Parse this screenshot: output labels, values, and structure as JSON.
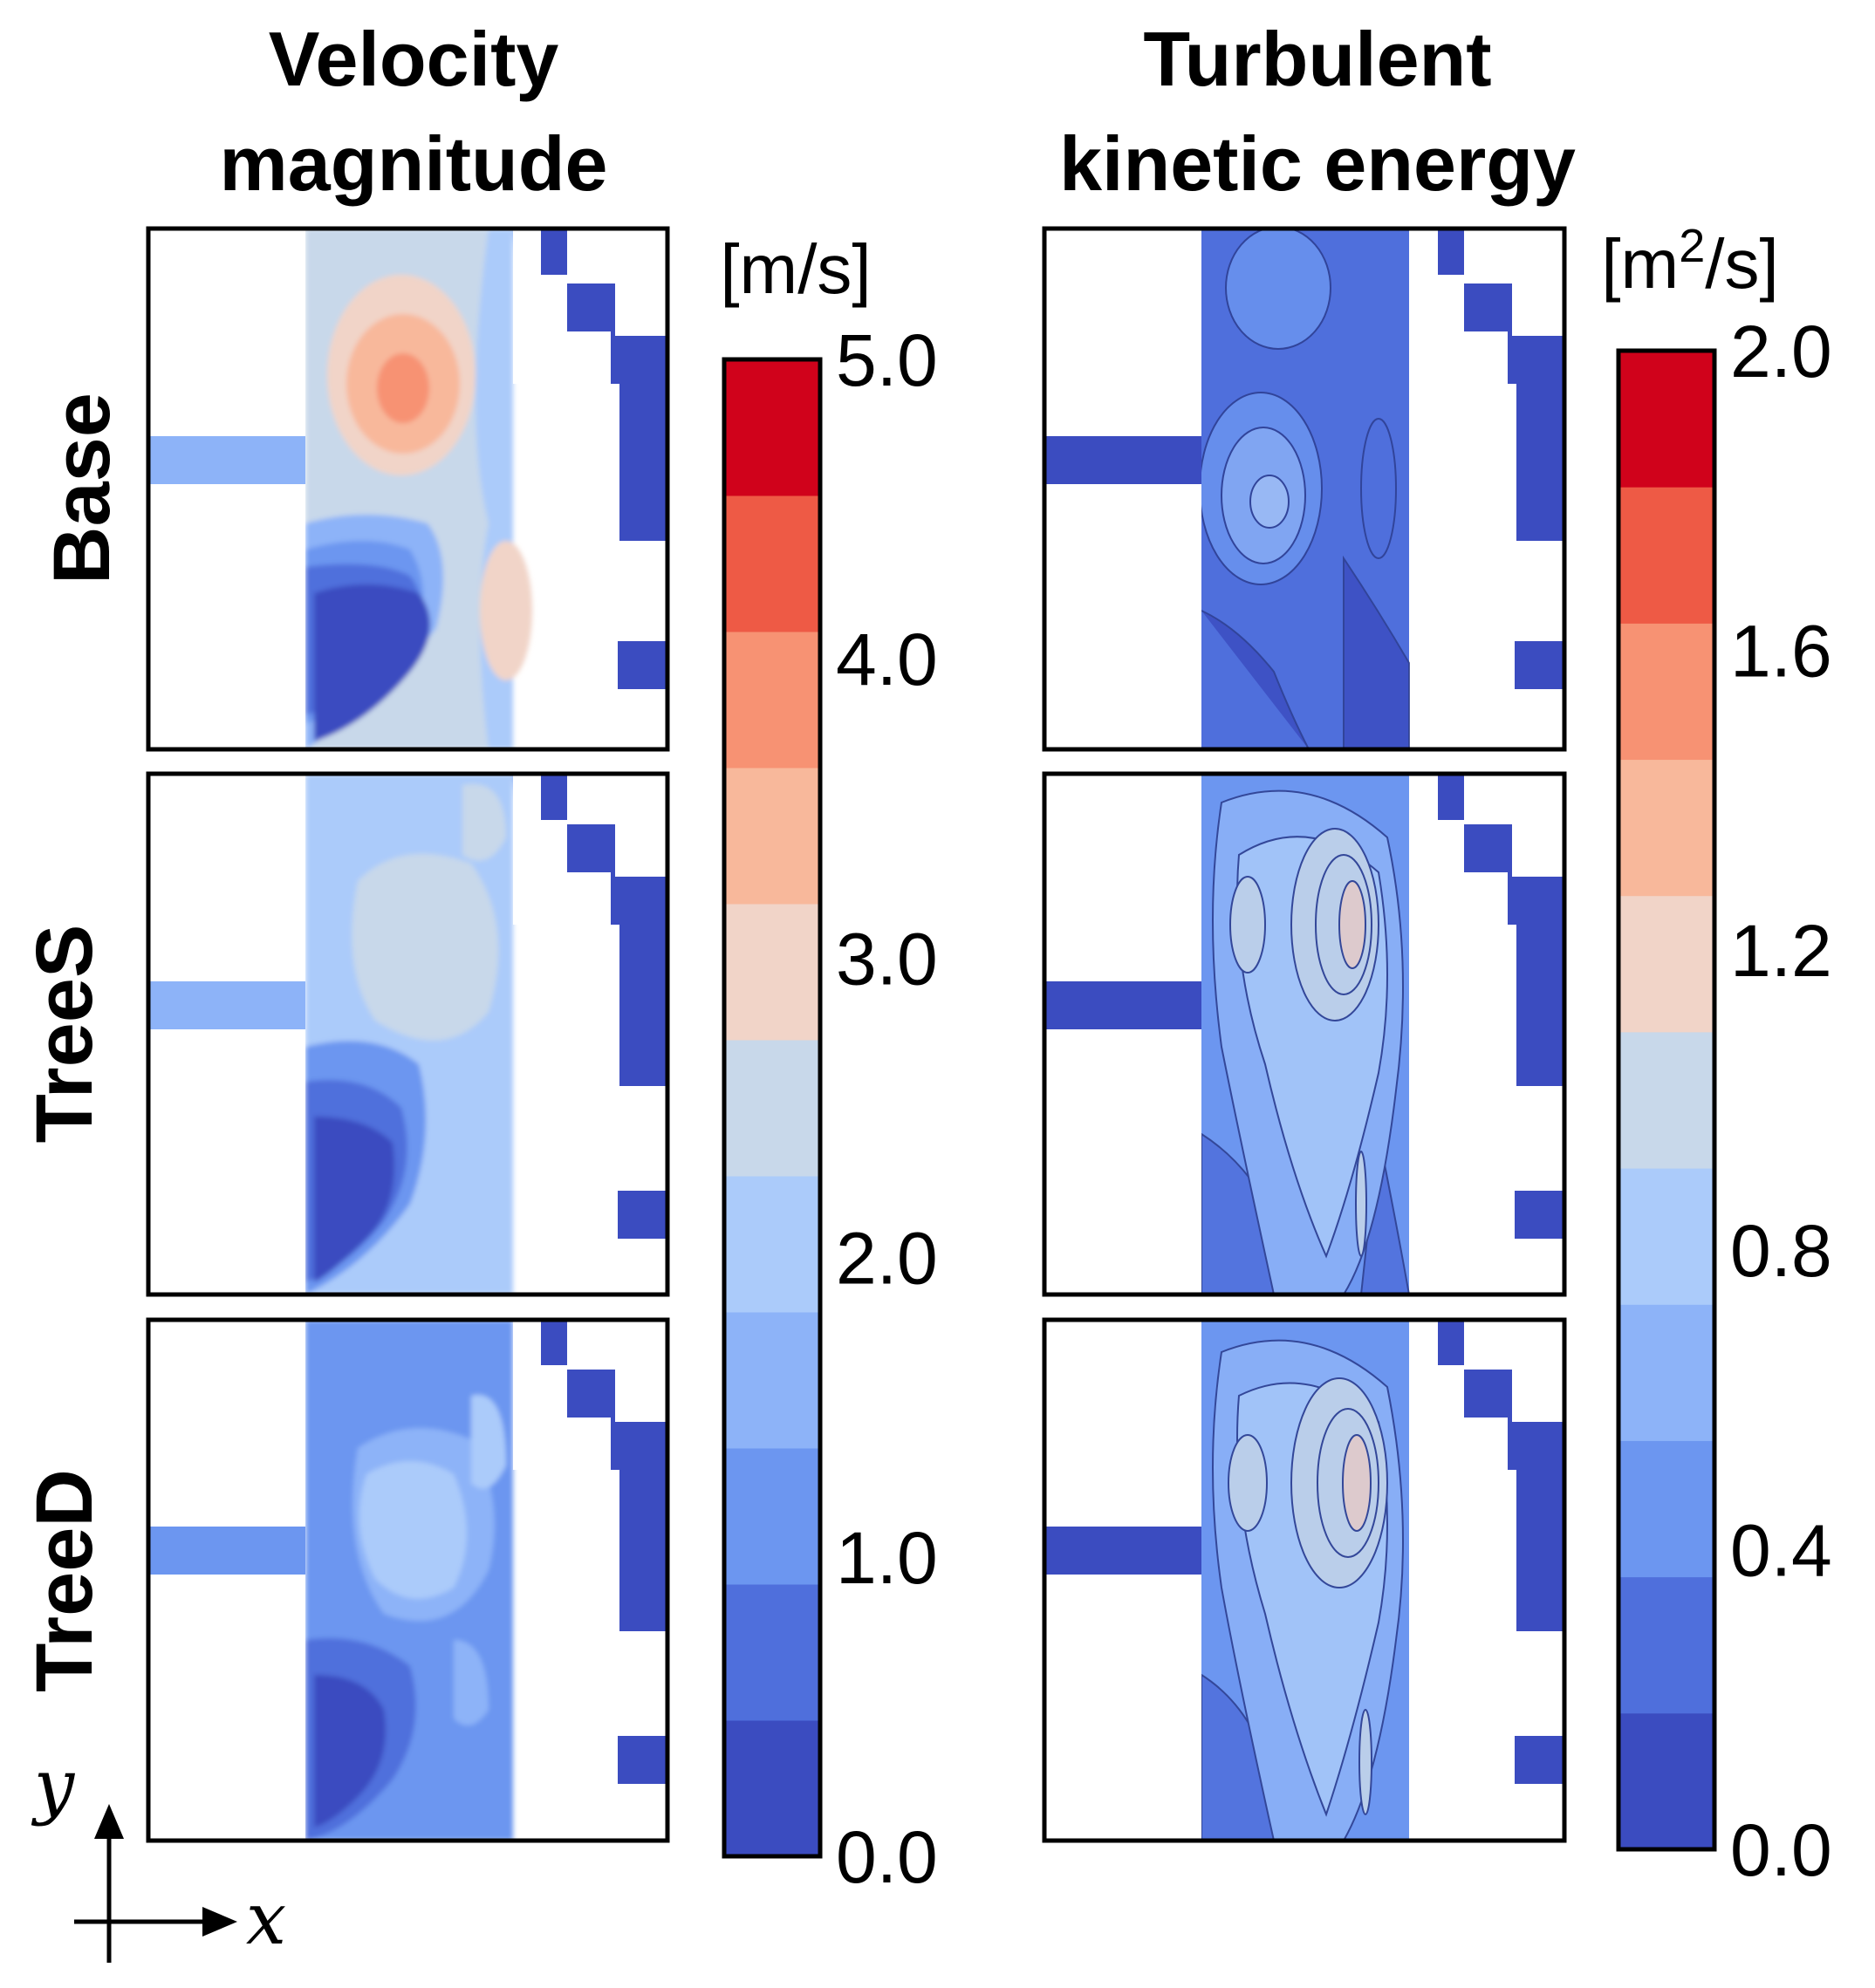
{
  "chart_data": [
    {
      "type": "heatmap",
      "title": "Velocity magnitude",
      "title_lines": [
        "Velocity",
        "magnitude"
      ],
      "unit": "[m/s]",
      "row_labels": [
        "Base",
        "TreeS",
        "TreeD"
      ],
      "colorbar": {
        "range": [
          0,
          5.0
        ],
        "tick_values": [
          0,
          1,
          2,
          3,
          4,
          5
        ],
        "tick_labels": [
          "0.0",
          "1.0",
          "2.0",
          "3.0",
          "4.0",
          "5.0"
        ],
        "levels": 11
      },
      "panels": [
        {
          "row": "Base",
          "peak_value": 4.3,
          "peak_location": "upper center of channel"
        },
        {
          "row": "TreeS",
          "peak_value": 2.6,
          "peak_location": "upper center of channel"
        },
        {
          "row": "TreeD",
          "peak_value": 2.2,
          "peak_location": "upper center of channel"
        }
      ]
    },
    {
      "type": "heatmap",
      "title": "Turbulent kinetic energy",
      "title_lines": [
        "Turbulent",
        "kinetic energy"
      ],
      "unit_base": "[m",
      "unit_sup": "2",
      "unit_tail": "/s]",
      "row_labels": [
        "Base",
        "TreeS",
        "TreeD"
      ],
      "colorbar": {
        "range": [
          0,
          2.0
        ],
        "tick_values": [
          0,
          0.4,
          0.8,
          1.2,
          1.6,
          2.0
        ],
        "tick_labels": [
          "0.0",
          "0.4",
          "0.8",
          "1.2",
          "1.6",
          "2.0"
        ],
        "levels": 11
      },
      "panels": [
        {
          "row": "Base",
          "peak_value": 0.75,
          "peak_location": "left-center of channel"
        },
        {
          "row": "TreeS",
          "peak_value": 1.2,
          "peak_location": "right-center of channel"
        },
        {
          "row": "TreeD",
          "peak_value": 1.2,
          "peak_location": "right-center of channel"
        }
      ]
    }
  ],
  "axes_glyph": {
    "x_label": "x",
    "y_label": "y"
  },
  "colors": {
    "palette": [
      "#3b4cc0",
      "#4f6fdc",
      "#6c96f0",
      "#8db3f8",
      "#abcbfa",
      "#c8d8ea",
      "#f1d4c8",
      "#f8b89b",
      "#f79273",
      "#ee5a45",
      "#d0021b"
    ],
    "frame": "#000000"
  }
}
